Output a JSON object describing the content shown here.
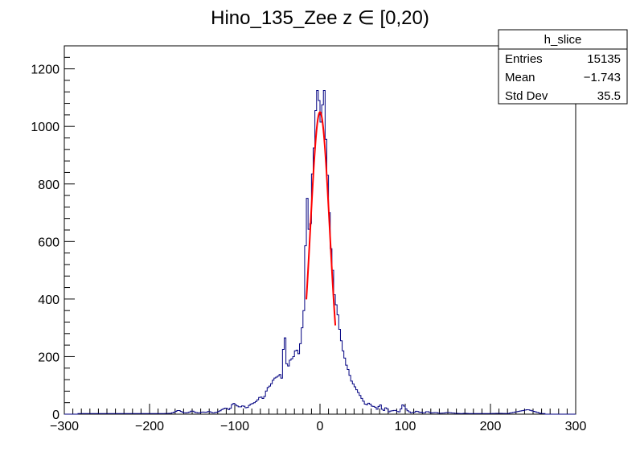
{
  "chart_data": {
    "type": "histogram",
    "title": "Hino_135_Zee z  ∈ [0,20)",
    "xlabel": "",
    "ylabel": "",
    "xlim": [
      -300,
      300
    ],
    "ylim": [
      0,
      1280
    ],
    "x_ticks": [
      "−300",
      "−200",
      "−100",
      "0",
      "100",
      "200",
      "300"
    ],
    "x_tick_values": [
      -300,
      -200,
      -100,
      0,
      100,
      200,
      300
    ],
    "y_ticks": [
      "0",
      "200",
      "400",
      "600",
      "800",
      "1000",
      "1200"
    ],
    "y_tick_values": [
      0,
      200,
      400,
      600,
      800,
      1000,
      1200
    ],
    "grid": false,
    "histogram_color": "#000080",
    "fit_color": "#ff0000",
    "histogram": {
      "name": "h_slice",
      "bin_width": 2,
      "points": [
        [
          -280,
          2
        ],
        [
          -270,
          2
        ],
        [
          -250,
          2
        ],
        [
          -240,
          2
        ],
        [
          -220,
          2
        ],
        [
          -200,
          2
        ],
        [
          -185,
          2
        ],
        [
          -175,
          3
        ],
        [
          -170,
          8
        ],
        [
          -166,
          14
        ],
        [
          -162,
          8
        ],
        [
          -158,
          4
        ],
        [
          -154,
          6
        ],
        [
          -150,
          12
        ],
        [
          -146,
          6
        ],
        [
          -142,
          4
        ],
        [
          -138,
          8
        ],
        [
          -134,
          6
        ],
        [
          -130,
          10
        ],
        [
          -126,
          4
        ],
        [
          -122,
          6
        ],
        [
          -118,
          10
        ],
        [
          -114,
          18
        ],
        [
          -110,
          22
        ],
        [
          -106,
          14
        ],
        [
          -102,
          40
        ],
        [
          -98,
          30
        ],
        [
          -94,
          24
        ],
        [
          -90,
          30
        ],
        [
          -86,
          20
        ],
        [
          -82,
          34
        ],
        [
          -78,
          38
        ],
        [
          -74,
          46
        ],
        [
          -70,
          62
        ],
        [
          -66,
          52
        ],
        [
          -62,
          90
        ],
        [
          -58,
          100
        ],
        [
          -54,
          124
        ],
        [
          -50,
          130
        ],
        [
          -46,
          140
        ],
        [
          -44,
          110
        ],
        [
          -42,
          340
        ],
        [
          -40,
          190
        ],
        [
          -38,
          160
        ],
        [
          -36,
          175
        ],
        [
          -34,
          200
        ],
        [
          -32,
          185
        ],
        [
          -30,
          215
        ],
        [
          -28,
          225
        ],
        [
          -26,
          220
        ],
        [
          -24,
          200
        ],
        [
          -22,
          290
        ],
        [
          -20,
          310
        ],
        [
          -18,
          410
        ],
        [
          -16,
          760
        ],
        [
          -14,
          740
        ],
        [
          -12,
          545
        ],
        [
          -10,
          780
        ],
        [
          -8,
          890
        ],
        [
          -6,
          960
        ],
        [
          -4,
          1150
        ],
        [
          -2,
          1100
        ],
        [
          0,
          1080
        ],
        [
          2,
          950
        ],
        [
          4,
          1200
        ],
        [
          6,
          1050
        ],
        [
          8,
          860
        ],
        [
          10,
          800
        ],
        [
          12,
          600
        ],
        [
          14,
          550
        ],
        [
          16,
          450
        ],
        [
          18,
          380
        ],
        [
          20,
          380
        ],
        [
          22,
          310
        ],
        [
          24,
          280
        ],
        [
          26,
          230
        ],
        [
          28,
          210
        ],
        [
          30,
          180
        ],
        [
          32,
          160
        ],
        [
          34,
          150
        ],
        [
          36,
          120
        ],
        [
          38,
          110
        ],
        [
          40,
          100
        ],
        [
          42,
          90
        ],
        [
          44,
          80
        ],
        [
          46,
          70
        ],
        [
          48,
          60
        ],
        [
          50,
          50
        ],
        [
          52,
          40
        ],
        [
          54,
          30
        ],
        [
          56,
          36
        ],
        [
          58,
          40
        ],
        [
          60,
          30
        ],
        [
          62,
          26
        ],
        [
          64,
          28
        ],
        [
          66,
          20
        ],
        [
          68,
          14
        ],
        [
          70,
          40
        ],
        [
          72,
          24
        ],
        [
          74,
          10
        ],
        [
          76,
          16
        ],
        [
          78,
          28
        ],
        [
          80,
          10
        ],
        [
          82,
          6
        ],
        [
          84,
          16
        ],
        [
          86,
          8
        ],
        [
          88,
          18
        ],
        [
          90,
          8
        ],
        [
          92,
          10
        ],
        [
          94,
          6
        ],
        [
          96,
          30
        ],
        [
          98,
          34
        ],
        [
          100,
          22
        ],
        [
          102,
          14
        ],
        [
          104,
          10
        ],
        [
          106,
          6
        ],
        [
          108,
          4
        ],
        [
          110,
          8
        ],
        [
          112,
          6
        ],
        [
          114,
          14
        ],
        [
          116,
          4
        ],
        [
          118,
          8
        ],
        [
          120,
          6
        ],
        [
          122,
          3
        ],
        [
          126,
          10
        ],
        [
          130,
          4
        ],
        [
          136,
          6
        ],
        [
          140,
          3
        ],
        [
          146,
          4
        ],
        [
          150,
          6
        ],
        [
          156,
          4
        ],
        [
          160,
          3
        ],
        [
          166,
          2
        ],
        [
          170,
          3
        ],
        [
          176,
          2
        ],
        [
          190,
          2
        ],
        [
          200,
          2
        ],
        [
          210,
          3
        ],
        [
          220,
          2
        ],
        [
          244,
          16
        ],
        [
          260,
          2
        ]
      ]
    },
    "fit": {
      "type": "gaussian",
      "amplitude": 1050,
      "mean": 0,
      "sigma": 11.5,
      "range": [
        -16,
        18
      ]
    },
    "stats_box": {
      "title": "h_slice",
      "placement": "top-right",
      "rows": [
        {
          "label": "Entries",
          "value": "15135"
        },
        {
          "label": "Mean",
          "value": "−1.743"
        },
        {
          "label": "Std Dev",
          "value": "35.5"
        }
      ]
    }
  }
}
